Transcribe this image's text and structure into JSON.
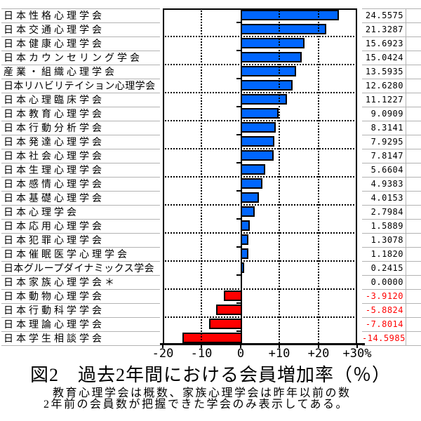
{
  "chart_data": {
    "type": "bar",
    "orientation": "horizontal",
    "title": "図2　過去2年間における会員増加率（％）",
    "footnote": [
      "教育心理学会は概数、家族心理学会は昨年以前の数",
      "2年前の会員数が把握できた学会のみ表示してある。"
    ],
    "categories": [
      "日本性格心理学会",
      "日本交通心理学会",
      "日本健康心理学会",
      "日本カウンセリング学会",
      "産業・組織心理学会",
      "日本リハビリテイション心理学会",
      "日本心理臨床学会",
      "日本教育心理学会",
      "日本行動分析学会",
      "日本発達心理学会",
      "日本社会心理学会",
      "日本生理心理学会",
      "日本感情心理学会",
      "日本基礎心理学会",
      "日本心理学会",
      "日本応用心理学会",
      "日本犯罪心理学会",
      "日本催眠医学心理学会",
      "日本グループダイナミックス学会",
      "日本家族心理学会＊",
      "日本動物心理学会",
      "日本行動科学学会",
      "日本理論心理学会",
      "日本学生相談学会"
    ],
    "values": [
      24.5575,
      21.3287,
      15.6923,
      15.0424,
      13.5935,
      12.628,
      11.1227,
      9.0909,
      8.3141,
      7.9295,
      7.8147,
      5.6604,
      4.9383,
      4.0153,
      2.7984,
      1.5889,
      1.3078,
      1.182,
      0.2415,
      0.0,
      -3.912,
      -5.8824,
      -7.8014,
      -14.5985
    ],
    "value_labels": [
      "24.5575",
      "21.3287",
      "15.6923",
      "15.0424",
      "13.5935",
      "12.6280",
      "11.1227",
      "9.0909",
      "8.3141",
      "7.9295",
      "7.8147",
      "5.6604",
      "4.9383",
      "4.0153",
      "2.7984",
      "1.5889",
      "1.3078",
      "1.1820",
      "0.2415",
      "0.0000",
      "-3.9120",
      "-5.8824",
      "-7.8014",
      "-14.5985"
    ],
    "xlim": [
      -20,
      30
    ],
    "x_tick_values": [
      -20,
      -10,
      0,
      10,
      20,
      30
    ],
    "x_tick_labels": [
      "-20",
      "-10",
      "0",
      "+10",
      "+20",
      "+30%"
    ],
    "grid": "dotted vertical gridlines at -10/+10/+20, dotted horizontal line every 2 rows",
    "legend": null,
    "bar_positive_color": "#0066FF",
    "bar_negative_color": "#FF0000",
    "negative_value_text_color": "#FF0000",
    "separator_line_color": "#B3B3B3",
    "axis_color": "#000000"
  }
}
